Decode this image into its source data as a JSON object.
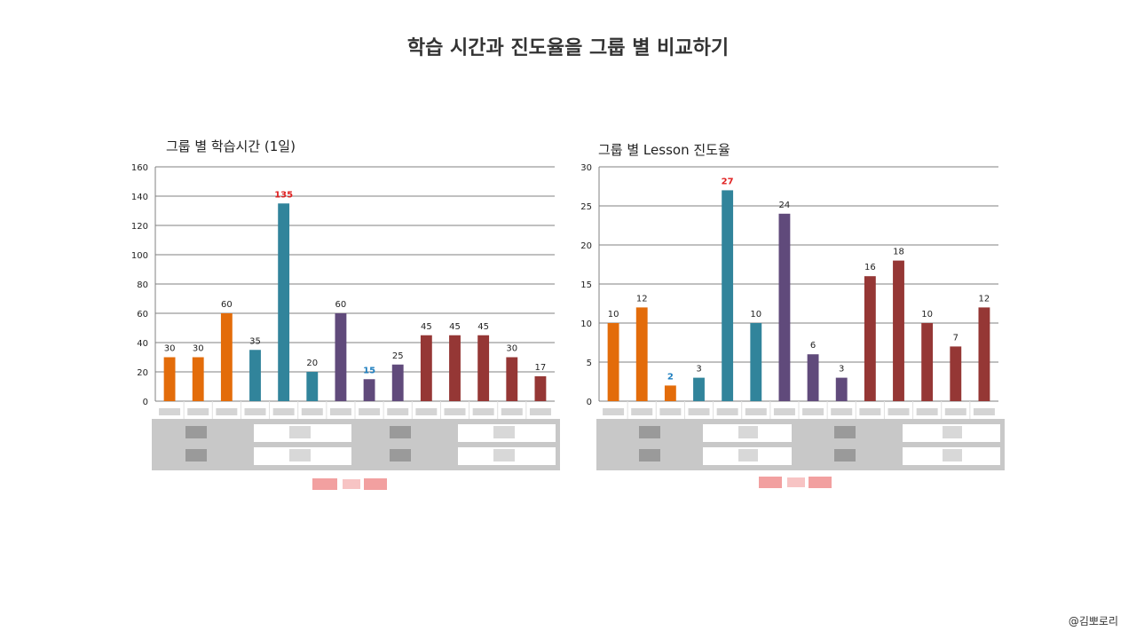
{
  "page_title": "학습 시간과 진도율을 그룹 별 비교하기",
  "credit": "@김뽀로리",
  "colors": {
    "orange": "#e36c0a",
    "teal": "#31849b",
    "purple": "#604a7b",
    "red": "#953735",
    "highlight_red": "#e02020",
    "highlight_blue": "#1f7fbf",
    "grid": "#808080"
  },
  "chart_data": [
    {
      "type": "bar",
      "title": "그룹 별 학습시간 (1일)",
      "ylim": [
        0,
        160
      ],
      "yticks": [
        0,
        20,
        40,
        60,
        80,
        100,
        120,
        140,
        160
      ],
      "grid": true,
      "values": [
        30,
        30,
        60,
        35,
        135,
        20,
        60,
        15,
        25,
        45,
        45,
        45,
        30,
        17
      ],
      "groups": [
        "orange",
        "orange",
        "orange",
        "teal",
        "teal",
        "teal",
        "purple",
        "purple",
        "purple",
        "red",
        "red",
        "red",
        "red",
        "red"
      ],
      "label_highlight": [
        "",
        "",
        "",
        "",
        "highlight_red",
        "",
        "",
        "highlight_blue",
        "",
        "",
        "",
        "",
        "",
        ""
      ]
    },
    {
      "type": "bar",
      "title": "그룹 별 Lesson 진도율",
      "ylim": [
        0,
        30
      ],
      "yticks": [
        0,
        5,
        10,
        15,
        20,
        25,
        30
      ],
      "grid": true,
      "values": [
        10,
        12,
        2,
        3,
        27,
        10,
        24,
        6,
        3,
        16,
        18,
        10,
        7,
        12
      ],
      "groups": [
        "orange",
        "orange",
        "orange",
        "teal",
        "teal",
        "teal",
        "purple",
        "purple",
        "purple",
        "red",
        "red",
        "red",
        "red",
        "red"
      ],
      "label_highlight": [
        "",
        "",
        "highlight_blue",
        "",
        "highlight_red",
        "",
        "",
        "",
        "",
        "",
        "",
        "",
        "",
        ""
      ]
    }
  ]
}
